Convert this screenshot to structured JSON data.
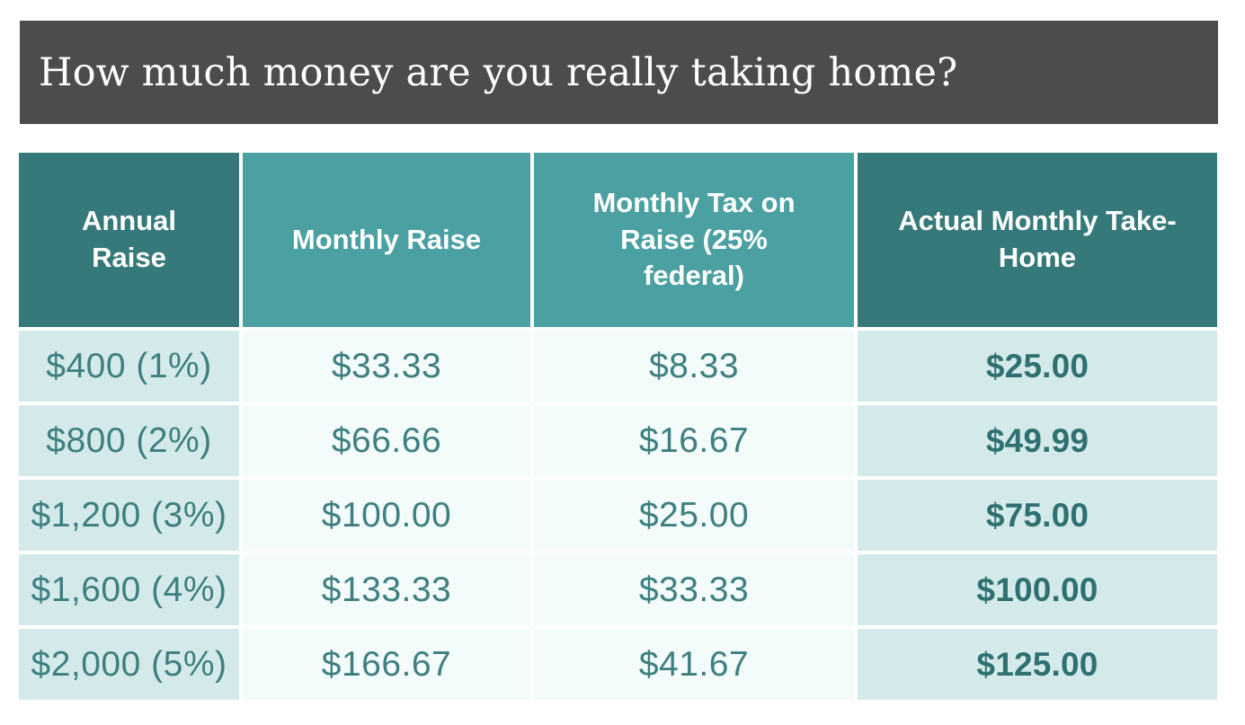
{
  "title_bar": {
    "text": "How much money are you really taking home?"
  },
  "colors": {
    "title_bar_bg": "#4C4C4C",
    "title_text": "#FFFFFF",
    "header_dark_bg": "#36797A",
    "header_light_bg": "#4BA0A1",
    "header_text": "#FFFFFF",
    "row_tint_bg": "#D4EAEA",
    "row_light_bg": "#F3FBFB",
    "value_text": "#3E7F80",
    "takehome_text": "#2F7071"
  },
  "chart_data": {
    "type": "table",
    "title": "How much money are you really taking home?",
    "columns": [
      "Annual Raise",
      "Monthly Raise",
      "Monthly Tax on Raise (25% federal)",
      "Actual Monthly Take-Home"
    ],
    "rows": [
      [
        "$400 (1%)",
        "$33.33",
        "$8.33",
        "$25.00"
      ],
      [
        "$800 (2%)",
        "$66.66",
        "$16.67",
        "$49.99"
      ],
      [
        "$1,200 (3%)",
        "$100.00",
        "$25.00",
        "$75.00"
      ],
      [
        "$1,600 (4%)",
        "$133.33",
        "$33.33",
        "$100.00"
      ],
      [
        "$2,000 (5%)",
        "$166.67",
        "$41.67",
        "$125.00"
      ]
    ]
  }
}
